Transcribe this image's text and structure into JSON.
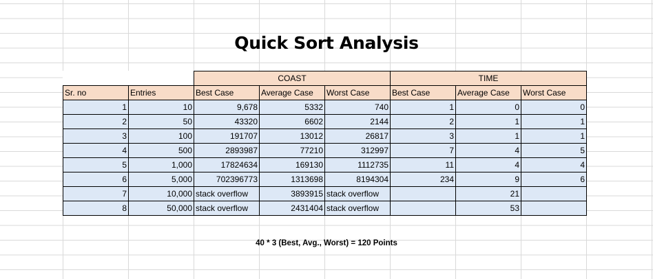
{
  "title": "Quick Sort Analysis",
  "group_headers": {
    "coast": "COAST",
    "time": "TIME"
  },
  "columns": [
    "Sr. no",
    "Entries",
    "Best Case",
    "Average Case",
    "Worst Case",
    "Best Case",
    "Average Case",
    "Worst Case"
  ],
  "rows": [
    [
      "1",
      "10",
      "9,678",
      "5332",
      "740",
      "1",
      "0",
      "0"
    ],
    [
      "2",
      "50",
      "43320",
      "6602",
      "2144",
      "2",
      "1",
      "1"
    ],
    [
      "3",
      "100",
      "191707",
      "13012",
      "26817",
      "3",
      "1",
      "1"
    ],
    [
      "4",
      "500",
      "2893987",
      "77210",
      "312997",
      "7",
      "4",
      "5"
    ],
    [
      "5",
      "1,000",
      "17824634",
      "169130",
      "1112735",
      "11",
      "4",
      "4"
    ],
    [
      "6",
      "5,000",
      "702396773",
      "1313698",
      "8194304",
      "234",
      "9",
      "6"
    ],
    [
      "7",
      "10,000",
      "stack overflow",
      "3893915",
      "stack overflow",
      "",
      "21",
      ""
    ],
    [
      "8",
      "50,000",
      "stack overflow",
      "2431404",
      "stack overflow",
      "",
      "53",
      ""
    ]
  ],
  "footnote": "40 * 3 (Best, Avg., Worst) = 120 Points"
}
